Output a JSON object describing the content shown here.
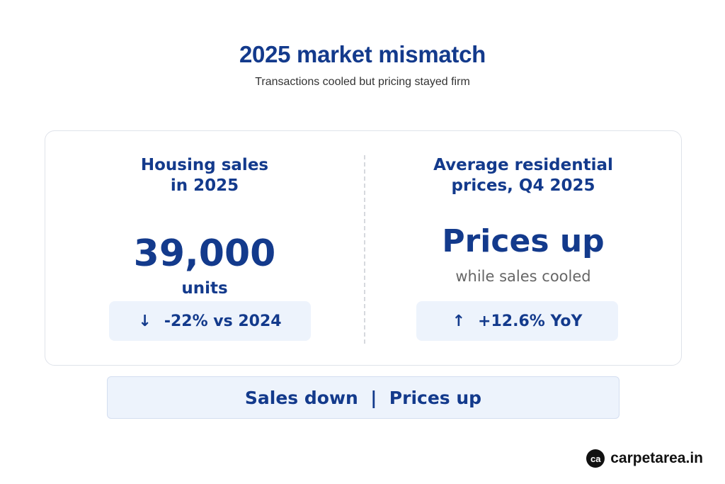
{
  "header": {
    "title": "2025 market mismatch",
    "subtitle": "Transactions cooled but pricing stayed firm"
  },
  "sales": {
    "heading_line1": "Housing sales",
    "heading_line2": "in 2025",
    "value": "39,000",
    "unit": "units",
    "change_arrow": "↓",
    "change_text": "-22% vs 2024"
  },
  "prices": {
    "heading_line1": "Average residential",
    "heading_line2": "prices, Q4 2025",
    "headline": "Prices up",
    "note": "while sales cooled",
    "change_arrow": "↑",
    "change_text": "+12.6% YoY"
  },
  "banner": {
    "text": "Sales down  |  Prices up"
  },
  "brand": {
    "logo_glyph": "ca",
    "name": "carpetarea.in"
  },
  "colors": {
    "accent": "#133a8c",
    "pill_bg": "#edf3fc"
  }
}
